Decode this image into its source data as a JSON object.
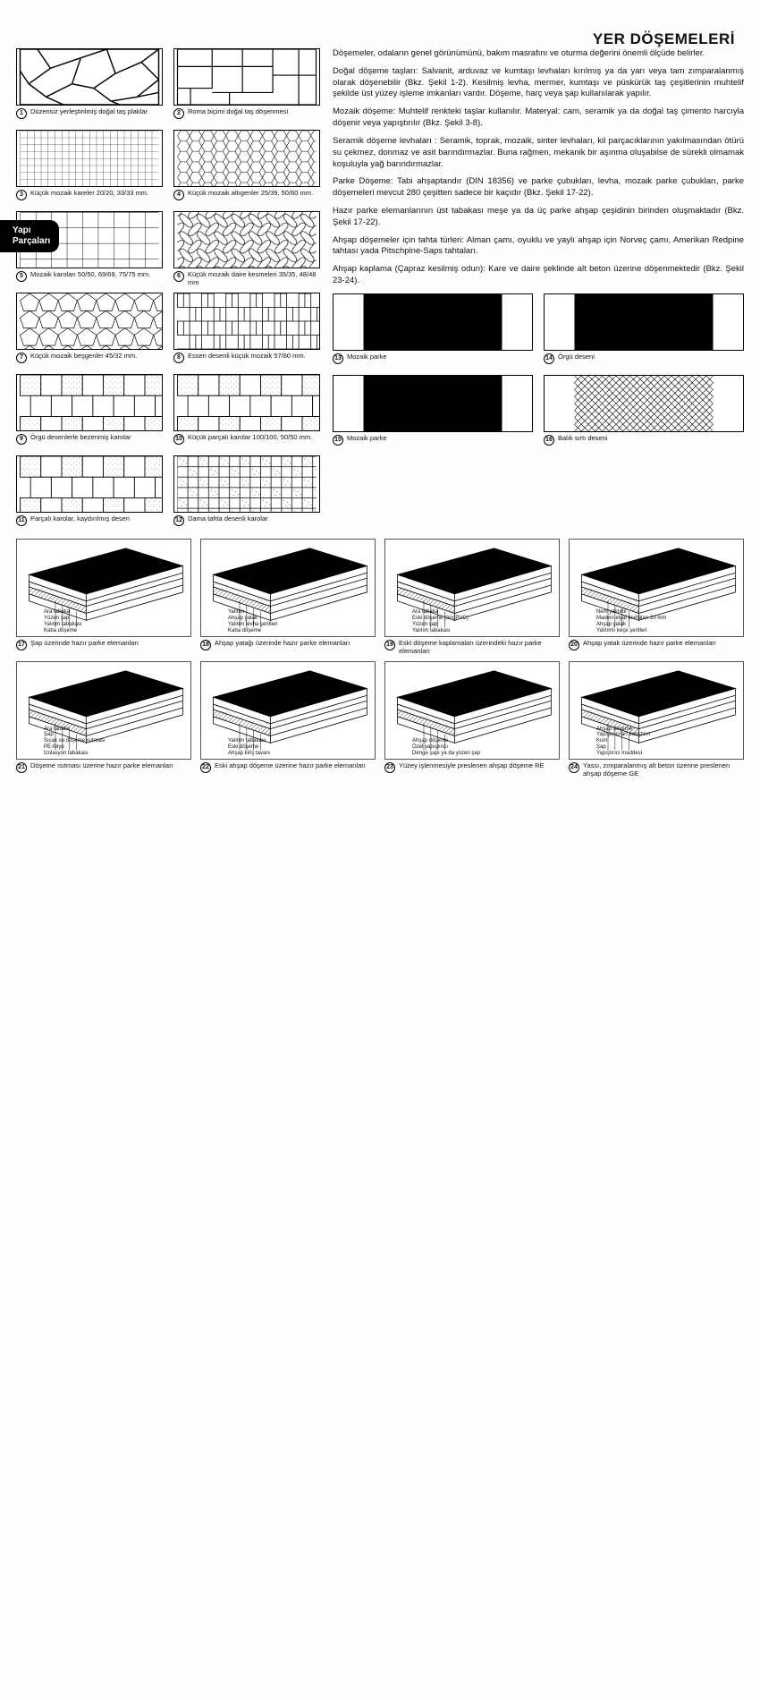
{
  "title": "YER DÖŞEMELERİ",
  "side_tab": "Yapı\nParçaları",
  "paragraphs": [
    "Döşemeler, odaların genel görünümünü, bakım masrafını ve oturma değerini önemli ölçüde belirler.",
    "Doğal döşeme taşları: Salvanit, arduvaz ve kumtaşı levhaları kırılmış ya da yarı veya tam zımparalanmış olarak döşenebilir (Bkz. Şekil 1-2). Kesilmiş levha, mermer, kumtaşı ve püskürük taş çeşitlerinin muhtelif şekilde üst yüzey işleme imkanları vardır. Döşeme, harç veya şap kullanılarak yapılır.",
    "Mozaik döşeme: Muhtelif renkteki taşlar kullanılır. Materyal: cam, seramik ya da doğal taş çimento harcıyla döşenir veya yapıştırılır (Bkz. Şekil 3-8).",
    "Seramik döşeme levhaları : Seramik, toprak, mozaik, sinter levhaları, kil parçacıklarının yakılmasından ötürü su çekmez, donmaz ve asit barındırmazlar. Buna rağmen, mekanik bir aşınma oluşabilse de sürekli olmamak koşuluyla yağ barındırmazlar.",
    "Parke Döşeme: Tabi ahşaptandır (DIN 18356) ve parke çubukları, levha, mozaik parke çubukları, parke döşemeleri mevcut 280 çeşitten sadece bir kaçıdır (Bkz. Şekil 17-22).",
    "Hazır parke elemanlarının üst tabakası meşe ya da üç parke ahşap çeşidinin birinden oluşmaktadır (Bkz. Şekil 17-22).",
    "Ahşap döşemeler için tahta türleri: Alman çamı, oyuklu ve yaylı ahşap için Norveç çamı, Amerikan Redpine tahtası yada Pitschpine-Saps tahtaları.",
    "Ahşap kaplama (Çapraz kesilmiş odun): Kare ve daire şeklinde alt beton üzerine döşenmektedir (Bkz. Şekil 23-24)."
  ],
  "figures": [
    {
      "n": 1,
      "cap": "Düzensiz yerleştirilmiş doğal taş plaklar",
      "type": "voronoi"
    },
    {
      "n": 2,
      "cap": "Roma biçimi doğal taş döşenmesi",
      "type": "romanblock"
    },
    {
      "n": 3,
      "cap": "Küçük mozaik kareler   20/20, 33/33 mm.",
      "type": "smallgrid"
    },
    {
      "n": 4,
      "cap": "Küçük mozaik altıgenler 25/39, 50/60 mm.",
      "type": "hex"
    },
    {
      "n": 5,
      "cap": "Mozaik karoları   50/50, 69/69, 75/75 mm.",
      "type": "biggrid"
    },
    {
      "n": 6,
      "cap": "Küçük mozaik daire kesmeleri 35/35, 48/48 mm",
      "type": "wavy"
    },
    {
      "n": 7,
      "cap": "Küçük mozaik beşgenler 45/32 mm.",
      "type": "pentagon"
    },
    {
      "n": 8,
      "cap": "Essen desenli küçük mozaik 57/80 mm.",
      "type": "essen"
    },
    {
      "n": 9,
      "cap": "Örgü desenlerle bezenmiş karolar",
      "type": "weave1"
    },
    {
      "n": 10,
      "cap": "Küçük parçalı karolar   100/100, 50/50 mm.",
      "type": "mixed"
    },
    {
      "n": 11,
      "cap": "Parçalı karolar, kaydırılmış desen",
      "type": "offset"
    },
    {
      "n": 12,
      "cap": "Dama tahta desenli karolar",
      "type": "checker"
    },
    {
      "n": 13,
      "cap": "Mozaik parke",
      "type": "parquet1"
    },
    {
      "n": 14,
      "cap": "Örgü deseni",
      "type": "parquet2"
    },
    {
      "n": 15,
      "cap": "Mozaik parke",
      "type": "parquet3"
    },
    {
      "n": 16,
      "cap": "Balık sırtı deseni",
      "type": "herring"
    }
  ],
  "sections": [
    {
      "n": 17,
      "cap": "Şap üzerinde hazır parke elemanları",
      "labels": [
        "Ara tabaka",
        "Yüzen şap",
        "Yalıtım tabakası",
        "Kaba döşeme"
      ]
    },
    {
      "n": 18,
      "cap": "Ahşap yatağı üzerinde hazır parke elemanları",
      "labels": [
        "Yalıtım",
        "Ahşap yatak",
        "Yalıtım levha şeritleri",
        "Kaba döşeme"
      ]
    },
    {
      "n": 19,
      "cap": "Eski döşeme kaplamaları üzerindeki hazır parke elemanları",
      "labels": [
        "Ara tabaka",
        "Eski döşeme (örn.PVC)",
        "Yüzen şap",
        "Yalıtım tabakası"
      ]
    },
    {
      "n": 20,
      "cap": "Ahşap yatak üzerinde hazır parke elemanları",
      "labels": [
        "Nem yalıtımı",
        "Madeni elyaf levhaları 20 mm",
        "Ahşap yatak",
        "Yalıtımlı keçe şeritleri"
      ]
    },
    {
      "n": 21,
      "cap": "Döşeme ısıtması üzerine hazır parke elemanları",
      "labels": [
        "Ara tabaka",
        "Şap",
        "Sıcak su döşeme ısıtması",
        "PE-folyo",
        "İzolasyon tabakası"
      ]
    },
    {
      "n": 22,
      "cap": "Eski ahşap döşeme üzerine hazır parke elemanları",
      "labels": [
        "Yalıtım tabakası",
        "Eski döşeme",
        "Ahşap kiriş tavanı"
      ]
    },
    {
      "n": 23,
      "cap": "Yüzey işlenmesiyle preslenen ahşap döşeme RE",
      "labels": [
        "Ahşap döşeme",
        "Özel yapıştırıcı",
        "Denge şapı ya da yüzen şap"
      ]
    },
    {
      "n": 24,
      "cap": "Yassı, zımparalanmış alt beton üzerine preslenen ahşap döşeme GE",
      "labels": [
        "Ahşap döşeme",
        "Yapıştırıcıları karıştırın",
        "Kum",
        "Şap",
        "Yapıştırıcı maddesi"
      ]
    }
  ],
  "colors": {
    "line": "#000",
    "bg": "#fff",
    "dot": "#888"
  }
}
